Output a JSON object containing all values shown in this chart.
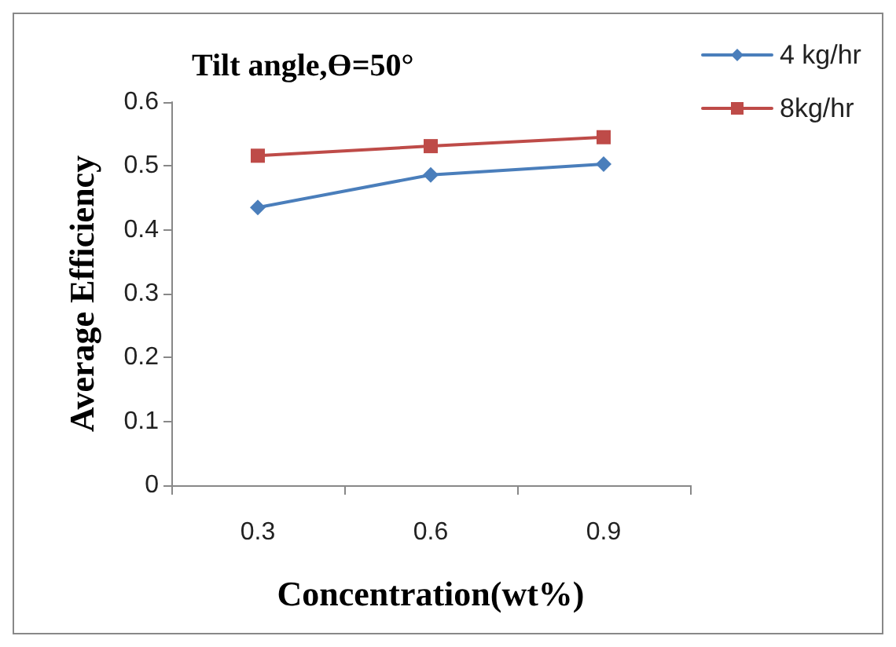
{
  "chart_data": {
    "type": "line",
    "title": "Tilt angle,Ɵ=50°",
    "xlabel": "Concentration(wt%)",
    "ylabel": "Average Efficiency",
    "categories": [
      "0.3",
      "0.6",
      "0.9"
    ],
    "series": [
      {
        "name": "4 kg/hr",
        "color": "#4a7ebb",
        "values": [
          0.435,
          0.486,
          0.503
        ],
        "marker": "diamond"
      },
      {
        "name": "8kg/hr",
        "color": "#be4b48",
        "values": [
          0.516,
          0.531,
          0.545
        ],
        "marker": "square"
      }
    ],
    "ylim": [
      0,
      0.6
    ],
    "yticks": [
      0,
      0.1,
      0.2,
      0.3,
      0.4,
      0.5,
      0.6
    ],
    "grid": false,
    "legend": "right",
    "line_style": "solid"
  }
}
